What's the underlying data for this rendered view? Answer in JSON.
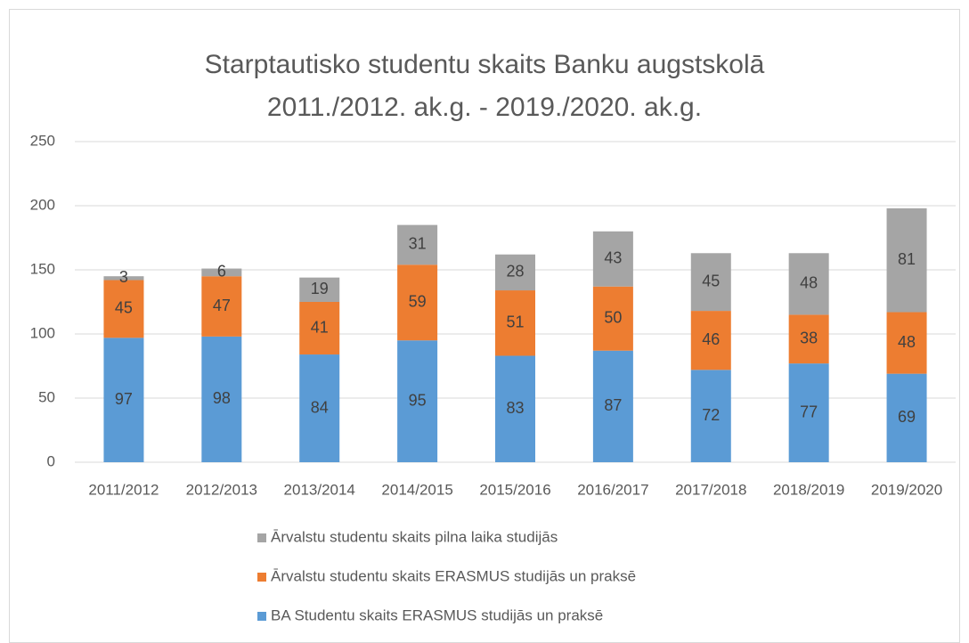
{
  "chart_data": {
    "type": "bar",
    "stacked": true,
    "title": [
      "Starptautisko studentu skaits Banku augstskolā",
      "2011./2012. ak.g. - 2019./2020. ak.g."
    ],
    "categories": [
      "2011/2012",
      "2012/2013",
      "2013/2014",
      "2014/2015",
      "2015/2016",
      "2016/2017",
      "2017/2018",
      "2018/2019",
      "2019/2020"
    ],
    "series": [
      {
        "name": "BA Studentu skaits ERASMUS studijās un praksē",
        "color": "#5b9bd5",
        "values": [
          97,
          98,
          84,
          95,
          83,
          87,
          72,
          77,
          69
        ]
      },
      {
        "name": "Ārvalstu studentu skaits ERASMUS studijās un praksē",
        "color": "#ed7d31",
        "values": [
          45,
          47,
          41,
          59,
          51,
          50,
          46,
          38,
          48
        ]
      },
      {
        "name": "Ārvalstu studentu skaits pilna laika studijās",
        "color": "#a5a5a5",
        "values": [
          3,
          6,
          19,
          31,
          28,
          43,
          45,
          48,
          81
        ]
      }
    ],
    "ylim": [
      0,
      250
    ],
    "yticks": [
      0,
      50,
      100,
      150,
      200,
      250
    ],
    "grid": true,
    "legend": "bottom"
  }
}
